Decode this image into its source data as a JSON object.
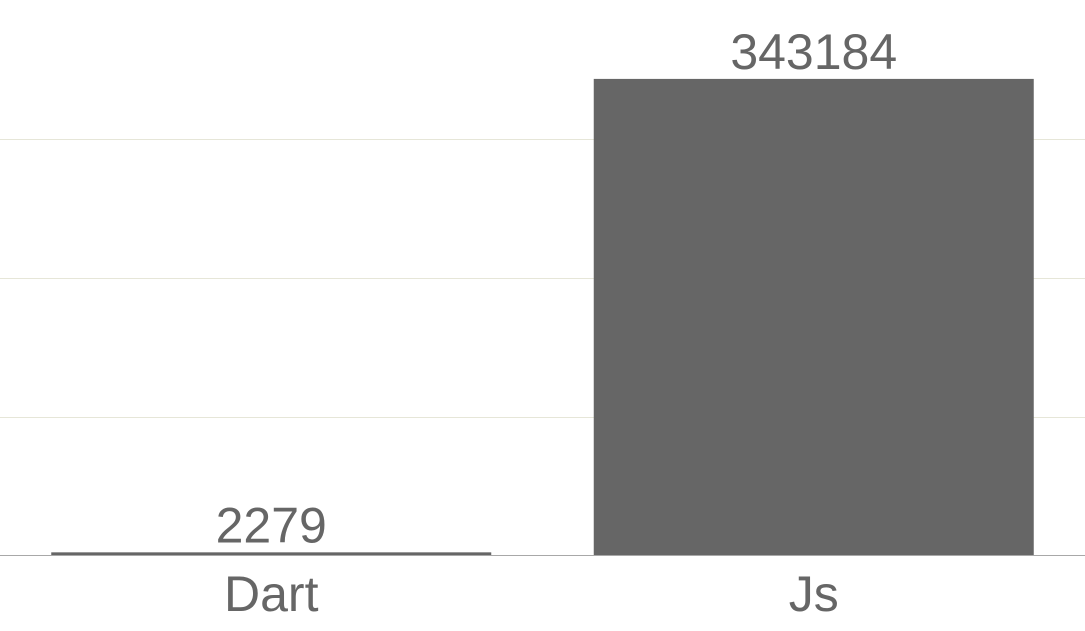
{
  "chart_data": {
    "type": "bar",
    "categories": [
      "Dart",
      "Js"
    ],
    "values": [
      2279,
      343184
    ],
    "data_labels": [
      "2279",
      "343184"
    ],
    "ylim": [
      0,
      400000
    ],
    "grid": true,
    "legend": "none"
  },
  "colors": {
    "bar": "#666666",
    "text": "#666666",
    "grid": "#e6e6d8",
    "axis": "#a8a8a8"
  }
}
